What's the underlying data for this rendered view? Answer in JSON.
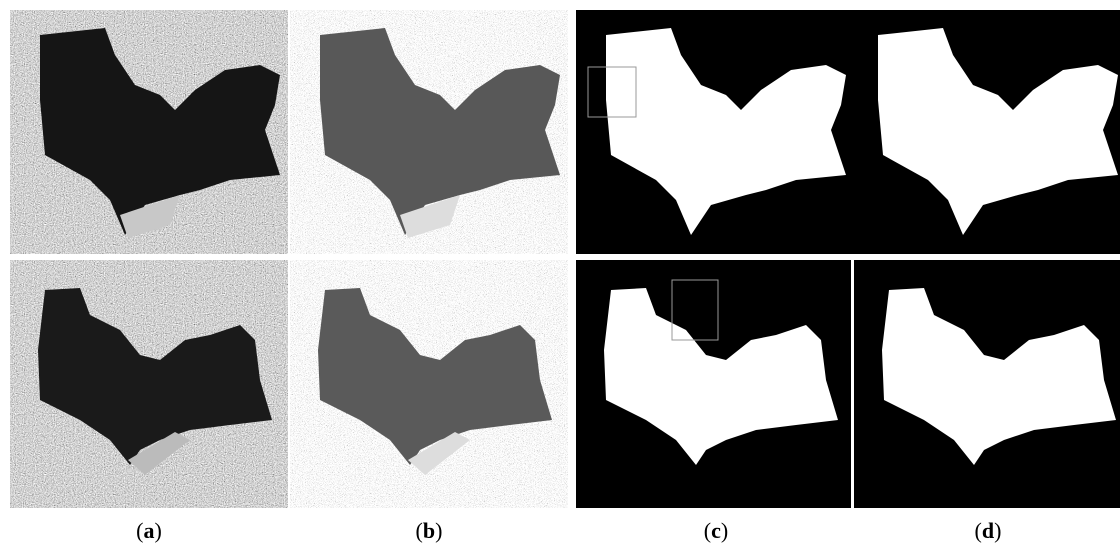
{
  "figure": {
    "labels": [
      {
        "open": "(",
        "letter": "a",
        "close": ")"
      },
      {
        "open": "(",
        "letter": "b",
        "close": ")"
      },
      {
        "open": "(",
        "letter": "c",
        "close": ")"
      },
      {
        "open": "(",
        "letter": "d",
        "close": ")"
      }
    ]
  }
}
